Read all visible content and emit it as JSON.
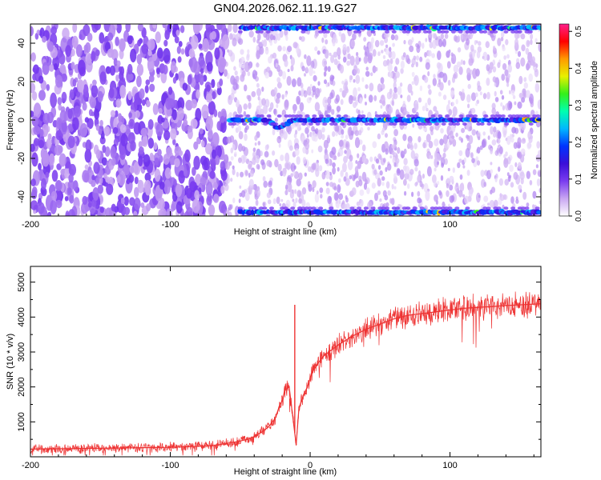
{
  "title": "GN04.2026.062.11.19.G27",
  "chart_data": [
    {
      "type": "heatmap",
      "xlabel": "Height of straight line (km)",
      "ylabel": "Frequency (Hz)",
      "xlim": [
        -200,
        165
      ],
      "ylim": [
        -50,
        50
      ],
      "xticks": [
        "-200",
        "-100",
        "0",
        "100"
      ],
      "yticks": [
        "-40",
        "-20",
        "0",
        "20",
        "40"
      ],
      "colorbar": {
        "label": "Normalized spectral amplitude",
        "range": [
          0.0,
          0.52
        ],
        "ticks": [
          "0.0",
          "0.1",
          "0.2",
          "0.3",
          "0.4",
          "0.5"
        ],
        "colormap": [
          "#ffffff",
          "#c9a6f2",
          "#7a3cf0",
          "#3b0fd9",
          "#0033ff",
          "#00b7ff",
          "#00ffb0",
          "#34f01a",
          "#e8f000",
          "#ff9a00",
          "#ff0000",
          "#ff1f8a"
        ]
      },
      "features": {
        "noise_transition_km": -60,
        "carrier_frequency_hz": 0,
        "carrier_start_km": -57,
        "carrier_dip": {
          "x": -22,
          "y": -4
        },
        "edge_band_frequencies_hz": [
          48,
          -48
        ],
        "edge_band_start_km": -50
      }
    },
    {
      "type": "line",
      "xlabel": "Height of straight line (km)",
      "ylabel": "SNR (10 * v/v)",
      "xlim": [
        -200,
        165
      ],
      "ylim": [
        0,
        5450
      ],
      "xticks": [
        "-200",
        "-100",
        "0",
        "100"
      ],
      "yticks": [
        "1000",
        "2000",
        "3000",
        "4000",
        "5000"
      ],
      "series_color": "#ee3333",
      "x": [
        -200,
        -180,
        -160,
        -140,
        -120,
        -100,
        -80,
        -70,
        -60,
        -50,
        -45,
        -40,
        -35,
        -30,
        -25,
        -22,
        -20,
        -18,
        -15,
        -12,
        -10,
        -8,
        -5,
        -2,
        0,
        2,
        5,
        10,
        15,
        20,
        30,
        40,
        50,
        60,
        70,
        80,
        90,
        100,
        110,
        120,
        130,
        140,
        150,
        160,
        165
      ],
      "y": [
        220,
        230,
        240,
        250,
        260,
        270,
        300,
        320,
        380,
        450,
        500,
        580,
        700,
        850,
        1100,
        1450,
        1600,
        1900,
        2000,
        1000,
        350,
        1400,
        1750,
        2000,
        2250,
        2450,
        2650,
        2900,
        3050,
        3200,
        3450,
        3650,
        3800,
        3950,
        4050,
        4100,
        4150,
        4200,
        4250,
        4280,
        4300,
        4330,
        4350,
        4370,
        4380
      ],
      "spike": {
        "x": -11,
        "y": 4350
      },
      "noise_envelope": {
        "low_snr_amplitude": 130,
        "high_snr_amplitude": 420
      }
    }
  ]
}
